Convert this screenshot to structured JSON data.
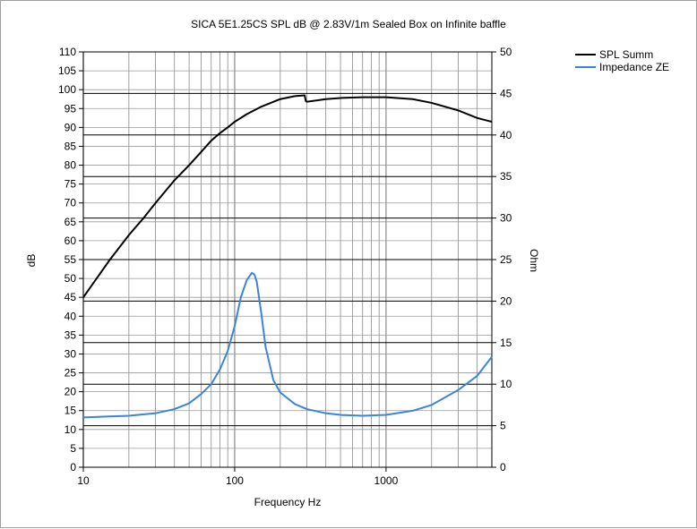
{
  "chart_data": {
    "type": "line",
    "title": "SICA 5E1.25CS SPL dB @ 2.83V/1m Sealed Box on Infinite baffle",
    "xlabel": "Frequency Hz",
    "ylabel": "dB",
    "y2label": "Ohm",
    "x_scale": "log",
    "xlim": [
      10,
      5000
    ],
    "ylim": [
      0,
      110
    ],
    "y2lim": [
      0,
      50
    ],
    "x_ticks": [
      "10",
      "100",
      "1000"
    ],
    "y_ticks": [
      "0",
      "5",
      "10",
      "15",
      "20",
      "25",
      "30",
      "35",
      "40",
      "45",
      "50",
      "55",
      "60",
      "65",
      "70",
      "75",
      "80",
      "85",
      "90",
      "95",
      "100",
      "105",
      "110"
    ],
    "y2_ticks": [
      "0",
      "5",
      "10",
      "15",
      "20",
      "25",
      "30",
      "35",
      "40",
      "45",
      "50"
    ],
    "grid": true,
    "legend_position": "top-right",
    "series": [
      {
        "name": "SPL Summ",
        "axis": "left",
        "color": "#000000",
        "x": [
          10,
          12,
          15,
          20,
          25,
          30,
          40,
          50,
          60,
          70,
          80,
          90,
          100,
          120,
          150,
          200,
          250,
          290,
          295,
          300,
          400,
          500,
          700,
          1000,
          1500,
          2000,
          3000,
          4000,
          5000
        ],
        "y": [
          45,
          49.5,
          55,
          61.5,
          66,
          70,
          76,
          80,
          83.5,
          86.5,
          88.5,
          90,
          91.5,
          93.5,
          95.5,
          97.5,
          98.3,
          98.5,
          97,
          96.8,
          97.5,
          97.8,
          98,
          98,
          97.5,
          96.5,
          94.5,
          92.5,
          91.5
        ]
      },
      {
        "name": "Impedance ZE",
        "axis": "right",
        "color": "#3b84dc",
        "x": [
          10,
          20,
          30,
          40,
          50,
          60,
          70,
          80,
          90,
          100,
          110,
          120,
          130,
          135,
          140,
          150,
          160,
          180,
          200,
          250,
          300,
          400,
          500,
          700,
          1000,
          1500,
          2000,
          3000,
          4000,
          5000
        ],
        "y": [
          6.0,
          6.2,
          6.5,
          7.0,
          7.7,
          8.8,
          10.0,
          11.8,
          14.0,
          17.0,
          20.5,
          22.5,
          23.4,
          23.2,
          22.3,
          18.5,
          14.5,
          10.5,
          9.0,
          7.6,
          7.0,
          6.5,
          6.3,
          6.2,
          6.3,
          6.8,
          7.5,
          9.3,
          11.0,
          13.3
        ]
      }
    ]
  }
}
